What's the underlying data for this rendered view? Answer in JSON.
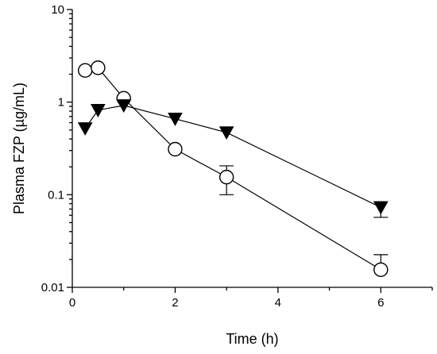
{
  "chart_data": {
    "type": "line",
    "xlabel": "Time (h)",
    "ylabel": "Plasma FZP (µg/mL)",
    "xlim": [
      0,
      7
    ],
    "ylim": [
      0.01,
      10
    ],
    "yscale": "log",
    "grid": false,
    "legend": "none",
    "x_ticks": [
      0,
      2,
      4,
      6
    ],
    "x_tick_labels": [
      "0",
      "2",
      "4",
      "6"
    ],
    "y_ticks": [
      0.01,
      0.1,
      1,
      10
    ],
    "y_tick_labels": [
      "0.01",
      "0.1",
      "1",
      "10"
    ],
    "series": [
      {
        "marker": "open-circle",
        "color": "#000000",
        "points": [
          {
            "x": 0.25,
            "y": 2.2
          },
          {
            "x": 0.5,
            "y": 2.35
          },
          {
            "x": 1,
            "y": 1.1
          },
          {
            "x": 2,
            "y": 0.31
          },
          {
            "x": 3,
            "y": 0.155,
            "err_upper": 0.205,
            "err_lower": 0.1
          },
          {
            "x": 6,
            "y": 0.0155,
            "err_upper": 0.0225
          }
        ]
      },
      {
        "marker": "filled-down-triangle",
        "color": "#000000",
        "points": [
          {
            "x": 0.25,
            "y": 0.52
          },
          {
            "x": 0.5,
            "y": 0.82
          },
          {
            "x": 1,
            "y": 0.92
          },
          {
            "x": 2,
            "y": 0.66
          },
          {
            "x": 3,
            "y": 0.47
          },
          {
            "x": 6,
            "y": 0.073,
            "err_lower": 0.057
          }
        ]
      }
    ]
  }
}
